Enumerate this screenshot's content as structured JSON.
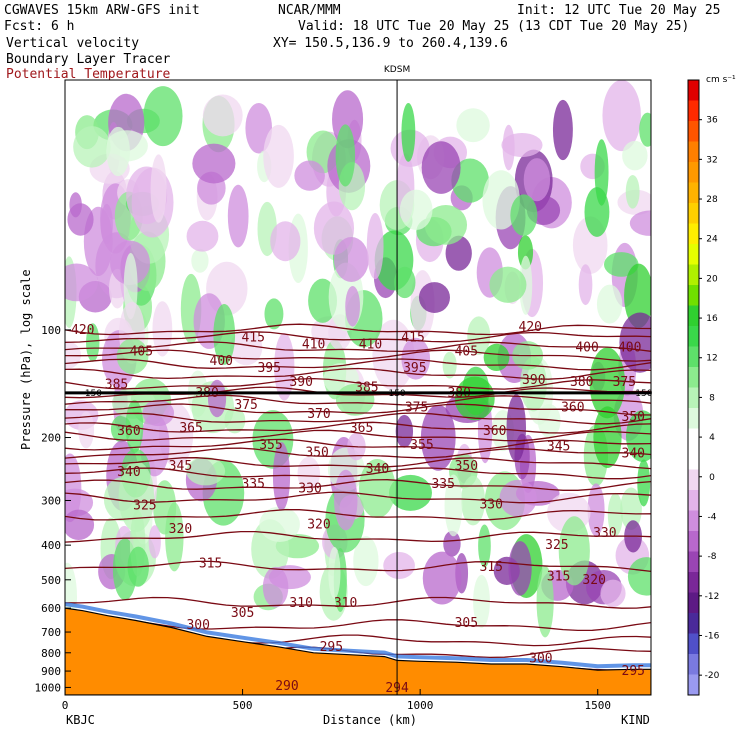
{
  "header": {
    "left_line1": "CGWAVES 15km ARW-GFS init",
    "left_line2": "Fcst:    6 h",
    "center_line1": "NCAR/MMM",
    "right_line1": "Init: 12 UTC Tue 20 May 25",
    "right_line2": "Valid: 18 UTC Tue 20 May 25 (13 CDT Tue 20 May 25)",
    "xy_line": "XY= 150.5,136.9 to 260.4,139.6",
    "field1": "Vertical velocity",
    "field2": "Boundary Layer Tracer",
    "field3": "Potential Temperature",
    "field3_color": "#a0181c"
  },
  "colors": {
    "theta": "#7a0a14",
    "terrain": "#ff8c00",
    "tropopause": "#000000"
  },
  "chart_data": {
    "type": "heatmap",
    "xlabel": "Distance (km)",
    "ylabel": "Pressure (hPa), log scale",
    "xlim": [
      0,
      1650
    ],
    "ylim_hpa": [
      1050,
      20
    ],
    "x_ticks": [
      "0",
      "500",
      "1000",
      "1500"
    ],
    "y_ticks": [
      "100",
      "200",
      "300",
      "400",
      "500",
      "600",
      "700",
      "800",
      "900",
      "1000"
    ],
    "y_tick_values": [
      100,
      200,
      300,
      400,
      500,
      600,
      700,
      800,
      900,
      1000
    ],
    "left_station": "KBJC",
    "right_station": "KIND",
    "mid_station": "KDSM",
    "mid_station_km": 935,
    "tropopause_hpa": 150,
    "tropopause_marks": [
      "150",
      "150",
      "150"
    ],
    "colorbar": {
      "unit": "cm s⁻¹",
      "ticks": [
        "36",
        "32",
        "28",
        "24",
        "20",
        "16",
        "12",
        "8",
        "4",
        "0",
        "-4",
        "-8",
        "-12",
        "-16",
        "-20"
      ],
      "tick_values": [
        36,
        32,
        28,
        24,
        20,
        16,
        12,
        8,
        4,
        0,
        -4,
        -8,
        -12,
        -16,
        -20
      ],
      "colors": [
        "#e00000",
        "#ff2a00",
        "#ff5500",
        "#ff7f00",
        "#ff9900",
        "#ffb300",
        "#ffd000",
        "#ffee00",
        "#e6ff00",
        "#b0f000",
        "#70e000",
        "#30d030",
        "#3ad84a",
        "#5ee06a",
        "#8ceb8e",
        "#b8f3b8",
        "#ddf9dd",
        "#ffffff",
        "#ffffff",
        "#f0d8f0",
        "#e3b4ea",
        "#cf8ede",
        "#b868cc",
        "#9a45b4",
        "#7a2898",
        "#5d1a85",
        "#4a2a9a",
        "#5050c8",
        "#7a7ae0",
        "#9a9af0"
      ]
    },
    "theta_contours": [
      {
        "label": "420",
        "p": 100
      },
      {
        "label": "415",
        "p": 105
      },
      {
        "label": "410",
        "p": 112
      },
      {
        "label": "405",
        "p": 118
      },
      {
        "label": "400",
        "p": 125
      },
      {
        "label": "395",
        "p": 133
      },
      {
        "label": "390",
        "p": 142
      },
      {
        "label": "385",
        "p": 150
      },
      {
        "label": "380",
        "p": 158
      },
      {
        "label": "375",
        "p": 167
      },
      {
        "label": "370",
        "p": 177
      },
      {
        "label": "365",
        "p": 188
      },
      {
        "label": "360",
        "p": 198
      },
      {
        "label": "355",
        "p": 210
      },
      {
        "label": "350",
        "p": 222
      },
      {
        "label": "345",
        "p": 236
      },
      {
        "label": "340",
        "p": 252
      },
      {
        "label": "335",
        "p": 272
      },
      {
        "label": "330",
        "p": 295
      },
      {
        "label": "325",
        "p": 330
      },
      {
        "label": "320",
        "p": 380
      },
      {
        "label": "315",
        "p": 460
      },
      {
        "label": "310",
        "p": 580
      },
      {
        "label": "305",
        "p": 670
      },
      {
        "label": "300",
        "p": 740
      },
      {
        "label": "295",
        "p": 800
      },
      {
        "label": "290",
        "p": 900
      }
    ],
    "theta_label_positions": [
      {
        "label": "420",
        "x": 50,
        "p": 100
      },
      {
        "label": "415",
        "x": 530,
        "p": 105
      },
      {
        "label": "415",
        "x": 980,
        "p": 105
      },
      {
        "label": "420",
        "x": 1310,
        "p": 98
      },
      {
        "label": "405",
        "x": 215,
        "p": 115
      },
      {
        "label": "400",
        "x": 440,
        "p": 122
      },
      {
        "label": "410",
        "x": 700,
        "p": 110
      },
      {
        "label": "410",
        "x": 860,
        "p": 110
      },
      {
        "label": "405",
        "x": 1130,
        "p": 115
      },
      {
        "label": "400",
        "x": 1470,
        "p": 112
      },
      {
        "label": "400",
        "x": 1590,
        "p": 112
      },
      {
        "label": "385",
        "x": 145,
        "p": 142
      },
      {
        "label": "395",
        "x": 575,
        "p": 128
      },
      {
        "label": "390",
        "x": 665,
        "p": 140
      },
      {
        "label": "385",
        "x": 850,
        "p": 145
      },
      {
        "label": "395",
        "x": 985,
        "p": 128
      },
      {
        "label": "390",
        "x": 1320,
        "p": 138
      },
      {
        "label": "380",
        "x": 1455,
        "p": 140
      },
      {
        "label": "375",
        "x": 1575,
        "p": 140
      },
      {
        "label": "380",
        "x": 400,
        "p": 150
      },
      {
        "label": "380",
        "x": 1110,
        "p": 150
      },
      {
        "label": "375",
        "x": 510,
        "p": 162
      },
      {
        "label": "370",
        "x": 715,
        "p": 172
      },
      {
        "label": "375",
        "x": 990,
        "p": 165
      },
      {
        "label": "360",
        "x": 1430,
        "p": 165
      },
      {
        "label": "350",
        "x": 1600,
        "p": 175
      },
      {
        "label": "360",
        "x": 180,
        "p": 192
      },
      {
        "label": "365",
        "x": 355,
        "p": 188
      },
      {
        "label": "365",
        "x": 835,
        "p": 188
      },
      {
        "label": "360",
        "x": 1210,
        "p": 192
      },
      {
        "label": "355",
        "x": 580,
        "p": 210
      },
      {
        "label": "355",
        "x": 1005,
        "p": 210
      },
      {
        "label": "350",
        "x": 710,
        "p": 220
      },
      {
        "label": "345",
        "x": 1390,
        "p": 212
      },
      {
        "label": "340",
        "x": 1600,
        "p": 222
      },
      {
        "label": "340",
        "x": 180,
        "p": 250
      },
      {
        "label": "345",
        "x": 325,
        "p": 240
      },
      {
        "label": "340",
        "x": 880,
        "p": 245
      },
      {
        "label": "350",
        "x": 1130,
        "p": 240
      },
      {
        "label": "335",
        "x": 530,
        "p": 270
      },
      {
        "label": "330",
        "x": 690,
        "p": 278
      },
      {
        "label": "335",
        "x": 1065,
        "p": 270
      },
      {
        "label": "330",
        "x": 1200,
        "p": 308
      },
      {
        "label": "325",
        "x": 225,
        "p": 310
      },
      {
        "label": "320",
        "x": 325,
        "p": 360
      },
      {
        "label": "320",
        "x": 715,
        "p": 350
      },
      {
        "label": "325",
        "x": 1385,
        "p": 400
      },
      {
        "label": "330",
        "x": 1520,
        "p": 370
      },
      {
        "label": "315",
        "x": 410,
        "p": 450
      },
      {
        "label": "315",
        "x": 1200,
        "p": 460
      },
      {
        "label": "315",
        "x": 1390,
        "p": 490
      },
      {
        "label": "320",
        "x": 1490,
        "p": 500
      },
      {
        "label": "310",
        "x": 665,
        "p": 580
      },
      {
        "label": "310",
        "x": 790,
        "p": 580
      },
      {
        "label": "305",
        "x": 500,
        "p": 620
      },
      {
        "label": "305",
        "x": 1130,
        "p": 660
      },
      {
        "label": "300",
        "x": 375,
        "p": 670
      },
      {
        "label": "295",
        "x": 750,
        "p": 770
      },
      {
        "label": "300",
        "x": 1340,
        "p": 830
      },
      {
        "label": "295",
        "x": 1600,
        "p": 900
      },
      {
        "label": "290",
        "x": 625,
        "p": 990
      },
      {
        "label": "294",
        "x": 935,
        "p": 1005
      }
    ],
    "terrain_hpa": [
      {
        "x": 0,
        "p": 600
      },
      {
        "x": 50,
        "p": 610
      },
      {
        "x": 120,
        "p": 630
      },
      {
        "x": 200,
        "p": 650
      },
      {
        "x": 300,
        "p": 680
      },
      {
        "x": 400,
        "p": 720
      },
      {
        "x": 500,
        "p": 745
      },
      {
        "x": 600,
        "p": 770
      },
      {
        "x": 700,
        "p": 800
      },
      {
        "x": 800,
        "p": 810
      },
      {
        "x": 900,
        "p": 820
      },
      {
        "x": 935,
        "p": 840
      },
      {
        "x": 1000,
        "p": 845
      },
      {
        "x": 1100,
        "p": 850
      },
      {
        "x": 1200,
        "p": 860
      },
      {
        "x": 1300,
        "p": 860
      },
      {
        "x": 1400,
        "p": 875
      },
      {
        "x": 1500,
        "p": 895
      },
      {
        "x": 1600,
        "p": 890
      },
      {
        "x": 1650,
        "p": 890
      }
    ],
    "grid": false
  }
}
